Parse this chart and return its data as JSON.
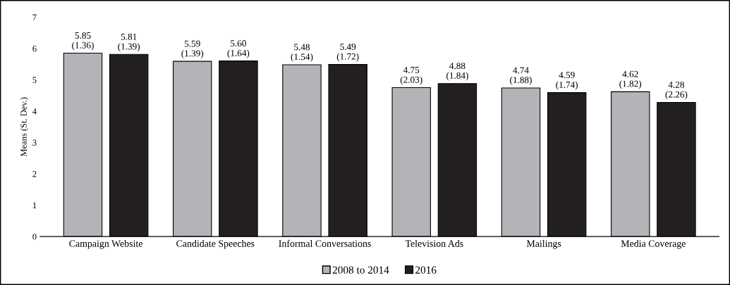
{
  "chart_data": {
    "type": "bar",
    "ylabel": "Means (St. Dev.)",
    "categories": [
      "Campaign Website",
      "Candidate Speeches",
      "Informal Conversations",
      "Television Ads",
      "Mailings",
      "Media Coverage"
    ],
    "series": [
      {
        "name": "2008 to 2014",
        "color": "#b3b4b7",
        "values": [
          5.85,
          5.59,
          5.48,
          4.75,
          4.74,
          4.62
        ],
        "value_labels": [
          "5.85\n(1.36)",
          "5.59\n(1.39)",
          "5.48\n(1.54)",
          "4.75\n(2.03)",
          "4.74\n(1.88)",
          "4.62\n(1.82)"
        ]
      },
      {
        "name": "2016",
        "color": "#231f20",
        "values": [
          5.81,
          5.6,
          5.49,
          4.88,
          4.59,
          4.28
        ],
        "value_labels": [
          "5.81\n(1.39)",
          "5.60\n(1.64)",
          "5.49\n(1.72)",
          "4.88\n(1.84)",
          "4.59\n(1.74)",
          "4.28\n(2.26)"
        ]
      }
    ],
    "ylim": [
      0,
      7
    ],
    "yticks": [
      0,
      1,
      2,
      3,
      4,
      5,
      6,
      7
    ],
    "grid": false,
    "legend": "bottom"
  }
}
